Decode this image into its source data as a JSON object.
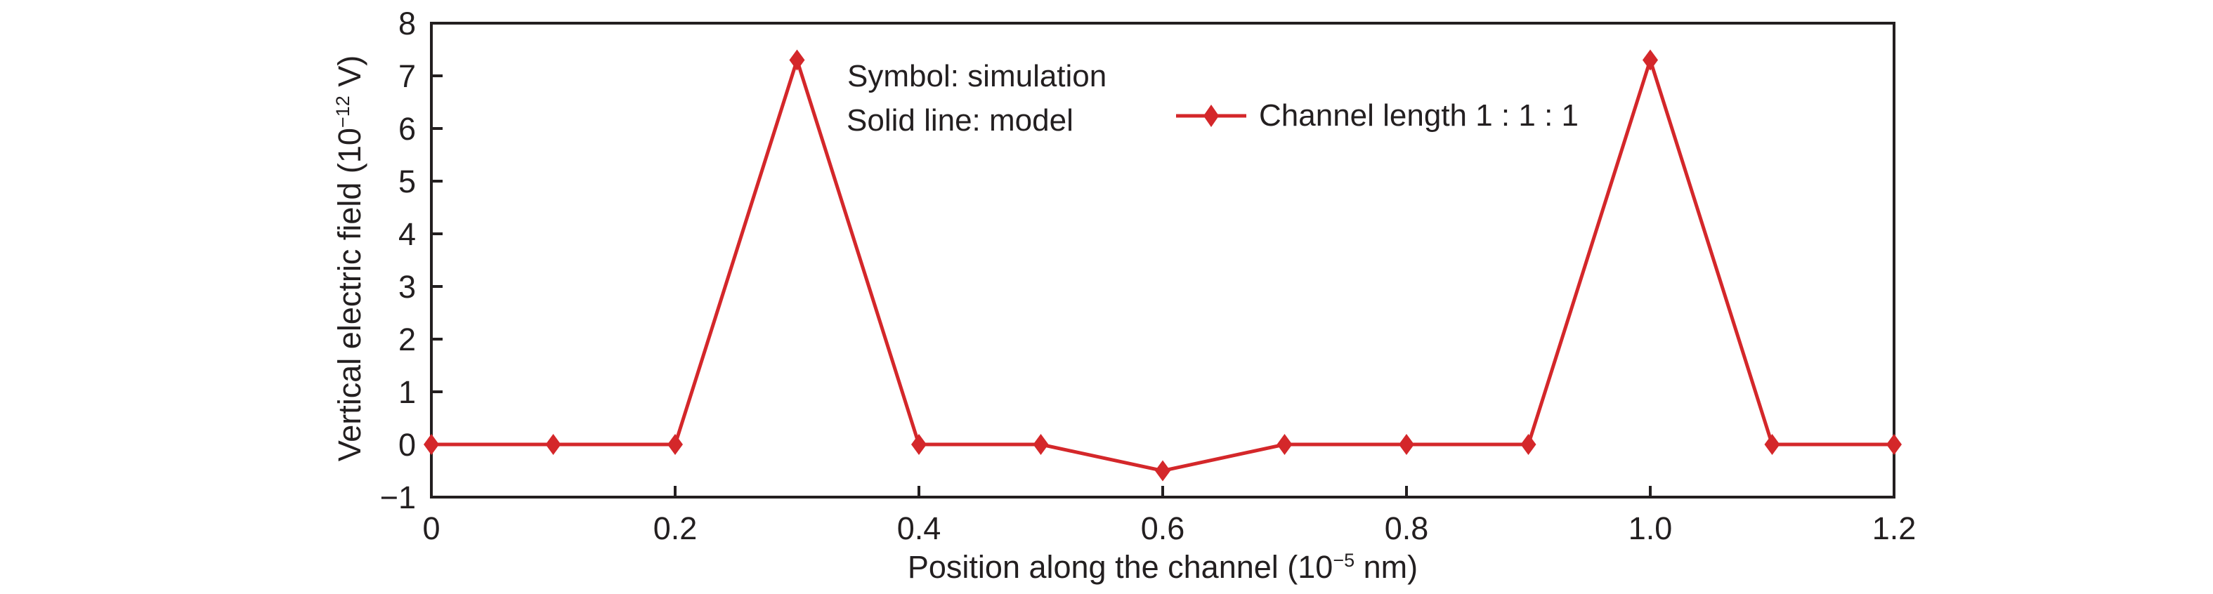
{
  "figure": {
    "background": "#ffffff",
    "text_color": "#231f20"
  },
  "chart_data": {
    "type": "line",
    "title": "",
    "xlabel": "Position along the channel (10^-5 nm)",
    "ylabel": "Vertical electric field (10^-12 V)",
    "xlabel_parts": {
      "pre": "Position along the channel (10",
      "sup": "−5",
      "post": " nm)"
    },
    "ylabel_parts": {
      "pre": "Vertical electric field (10",
      "sup": "−12",
      "post": " V)"
    },
    "xlim": [
      0,
      1.2
    ],
    "ylim": [
      -1,
      8
    ],
    "grid": false,
    "axis_color": "#231f20",
    "xticks": {
      "values": [
        0,
        0.2,
        0.4,
        0.6,
        0.8,
        1.0,
        1.2
      ],
      "labels": [
        "0",
        "0.2",
        "0.4",
        "0.6",
        "0.8",
        "1.0",
        "1.2"
      ]
    },
    "yticks": {
      "values": [
        -1,
        0,
        1,
        2,
        3,
        4,
        5,
        6,
        7,
        8
      ],
      "labels": [
        "−1",
        "0",
        "1",
        "2",
        "3",
        "4",
        "5",
        "6",
        "7",
        "8"
      ]
    },
    "annotations": [
      "Symbol: simulation",
      "Solid line: model"
    ],
    "legend": {
      "label": "Channel length 1 : 1 : 1",
      "marker": "diamond-with-line",
      "position": "inside-top-right"
    },
    "series": [
      {
        "name": "Channel length 1 : 1 : 1",
        "color": "#d4272a",
        "marker": "diamond",
        "x": [
          0,
          0.1,
          0.2,
          0.3,
          0.4,
          0.5,
          0.6,
          0.7,
          0.8,
          0.9,
          1.0,
          1.1,
          1.2
        ],
        "y": [
          0,
          0,
          0,
          7.3,
          0,
          0,
          -0.5,
          0,
          0,
          0,
          7.3,
          0,
          0
        ]
      }
    ]
  }
}
